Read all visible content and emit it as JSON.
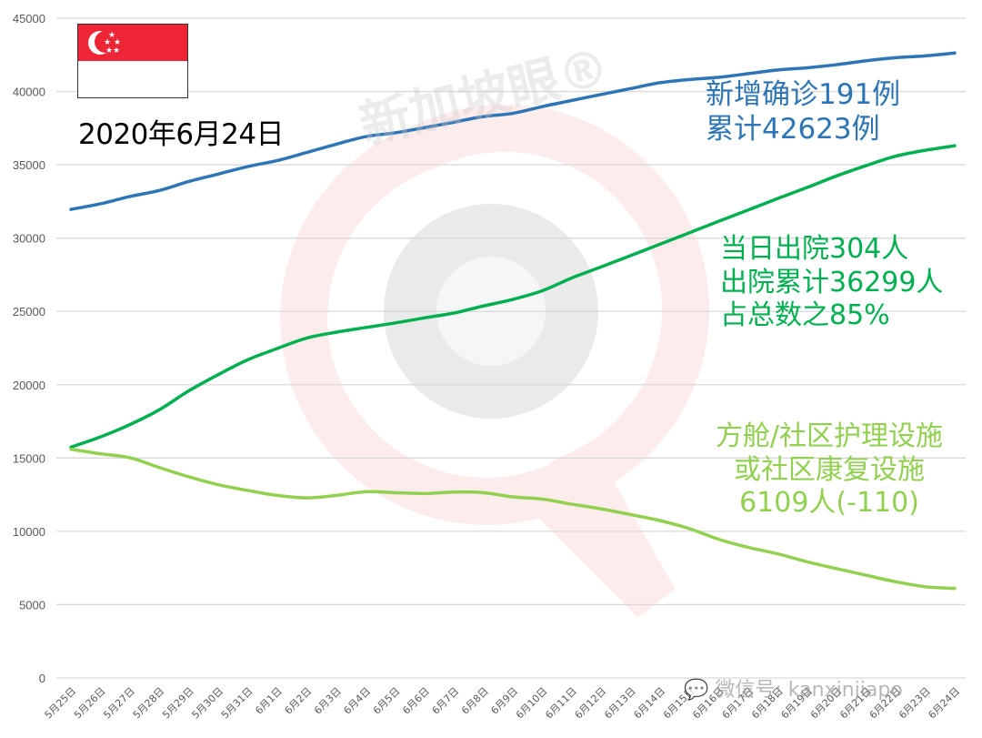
{
  "header": {
    "date_title": "2020年6月24日",
    "flag": {
      "name": "Singapore",
      "red": "#EE2536",
      "white": "#FFFFFF"
    }
  },
  "annotations": {
    "confirmed": {
      "line1": "新增确诊191例",
      "line2": "累计42623例",
      "color": "#2E75B6"
    },
    "discharged": {
      "line1": "当日出院304人",
      "line2": "出院累计36299人",
      "line3": "占总数之85%",
      "color": "#00B050"
    },
    "community": {
      "line1": "方舱/社区护理设施",
      "line2": "或社区康复设施",
      "line3": "6109人(-110)",
      "color": "#92D050"
    }
  },
  "watermarks": {
    "brand": "新加坡眼®",
    "wechat": "微信号: kanxinjiapo"
  },
  "chart_data": {
    "type": "line",
    "title": "2020年6月24日",
    "xlabel": "",
    "ylabel": "",
    "ylim": [
      0,
      45000
    ],
    "yticks": [
      0,
      5000,
      10000,
      15000,
      20000,
      25000,
      30000,
      35000,
      40000,
      45000
    ],
    "grid": true,
    "legend_position": "none (inline annotations)",
    "categories": [
      "5月25日",
      "5月26日",
      "5月27日",
      "5月28日",
      "5月29日",
      "5月30日",
      "5月31日",
      "6月1日",
      "6月2日",
      "6月3日",
      "6月4日",
      "6月5日",
      "6月6日",
      "6月7日",
      "6月8日",
      "6月9日",
      "6月10日",
      "6月11日",
      "6月12日",
      "6月13日",
      "6月14日",
      "6月15日",
      "6月16日",
      "6月17日",
      "6月18日",
      "6月19日",
      "6月20日",
      "6月21日",
      "6月22日",
      "6月23日",
      "6月24日"
    ],
    "series": [
      {
        "name": "累计确诊",
        "color": "#2E75B6",
        "values": [
          31960,
          32340,
          32840,
          33250,
          33860,
          34370,
          34880,
          35290,
          35840,
          36400,
          36920,
          37180,
          37530,
          37910,
          38290,
          38510,
          38970,
          39390,
          39800,
          40200,
          40600,
          40820,
          40970,
          41220,
          41470,
          41620,
          41830,
          42100,
          42310,
          42430,
          42623
        ]
      },
      {
        "name": "出院累计",
        "color": "#00B050",
        "values": [
          15740,
          16440,
          17280,
          18290,
          19580,
          20690,
          21700,
          22470,
          23180,
          23580,
          23900,
          24210,
          24560,
          24890,
          25370,
          25820,
          26410,
          27280,
          28040,
          28810,
          29590,
          30370,
          31160,
          31930,
          32710,
          33460,
          34250,
          34950,
          35590,
          35990,
          36299
        ]
      },
      {
        "name": "方舱/社区护理设施或社区康复设施",
        "color": "#92D050",
        "values": [
          15600,
          15290,
          15020,
          14350,
          13720,
          13180,
          12790,
          12450,
          12280,
          12450,
          12700,
          12640,
          12580,
          12680,
          12640,
          12350,
          12200,
          11850,
          11530,
          11140,
          10730,
          10180,
          9450,
          8900,
          8460,
          7920,
          7450,
          7000,
          6560,
          6219,
          6109
        ]
      }
    ],
    "annotations": [
      "新增确诊191例 累计42623例",
      "当日出院304人 出院累计36299人 占总数之85%",
      "方舱/社区护理设施或社区康复设施 6109人(-110)"
    ]
  }
}
